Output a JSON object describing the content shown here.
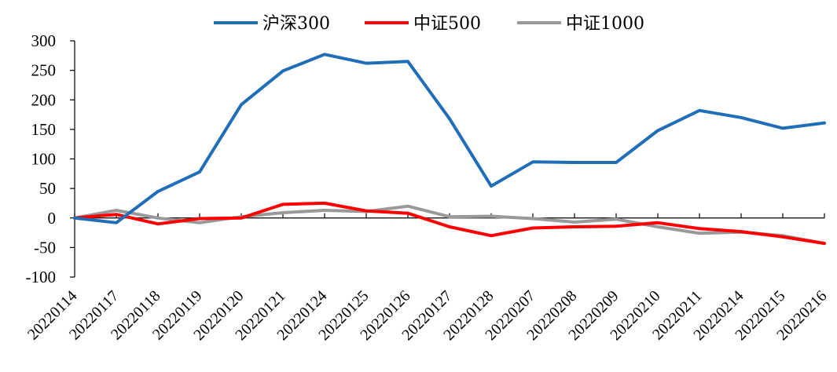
{
  "chart_data": {
    "type": "line",
    "title": "",
    "xlabel": "",
    "ylabel": "",
    "ylim": [
      -100,
      300
    ],
    "yticks": [
      300,
      250,
      200,
      150,
      100,
      50,
      0,
      -50,
      -100
    ],
    "ytick_labels": [
      "300",
      "250",
      "200",
      "150",
      "100",
      "50",
      "0",
      "-50",
      "-100"
    ],
    "legend_position": "top",
    "grid": false,
    "categories": [
      "20220114",
      "20220117",
      "20220118",
      "20220119",
      "20220120",
      "20220121",
      "20220124",
      "20220125",
      "20220126",
      "20220127",
      "20220128",
      "20220207",
      "20220208",
      "20220209",
      "20220210",
      "20220211",
      "20220214",
      "20220215",
      "20220216"
    ],
    "series": [
      {
        "name": "沪深300",
        "color": "#1f6eb7",
        "values": [
          0,
          -8,
          45,
          78,
          192,
          249,
          277,
          262,
          265,
          168,
          54,
          95,
          94,
          94,
          148,
          182,
          170,
          152,
          161
        ]
      },
      {
        "name": "中证500",
        "color": "#ff0000",
        "values": [
          0,
          6,
          -10,
          -1,
          0,
          23,
          25,
          12,
          8,
          -15,
          -30,
          -17,
          -15,
          -14,
          -8,
          -18,
          -23,
          -32,
          -43
        ]
      },
      {
        "name": "中证1000",
        "color": "#999999",
        "values": [
          0,
          13,
          0,
          -8,
          2,
          9,
          13,
          11,
          20,
          2,
          3,
          -1,
          -7,
          -2,
          -15,
          -26,
          -24,
          -30,
          -43
        ]
      }
    ]
  }
}
